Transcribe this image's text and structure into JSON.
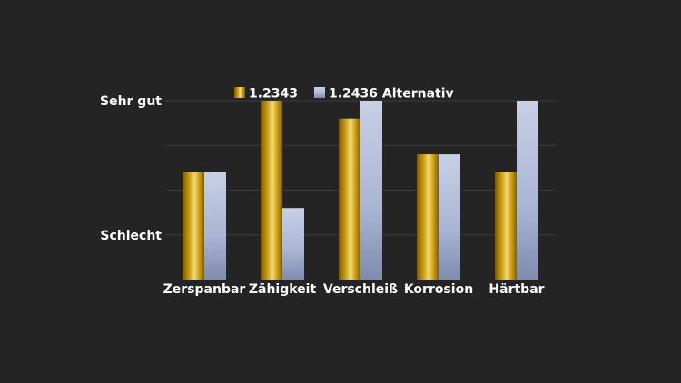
{
  "chart_data": {
    "type": "bar",
    "categories": [
      "Zerspanbar",
      "Zähigkeit",
      "Verschleiß",
      "Korrosion",
      "Härtbar"
    ],
    "series": [
      {
        "name": "1.2343",
        "values": [
          2.4,
          4.0,
          3.6,
          2.8,
          2.4
        ],
        "color": "#c9a227"
      },
      {
        "name": "1.2436 Alternativ",
        "values": [
          2.4,
          1.6,
          4.0,
          2.8,
          4.0
        ],
        "color": "#a8b4d4"
      }
    ],
    "ylim": [
      0,
      4
    ],
    "yticks": [
      {
        "value": 1,
        "label": "Schlecht"
      },
      {
        "value": 4,
        "label": "Sehr gut"
      }
    ],
    "gridlines": [
      1,
      2,
      3,
      4
    ],
    "legend_position": "top"
  }
}
